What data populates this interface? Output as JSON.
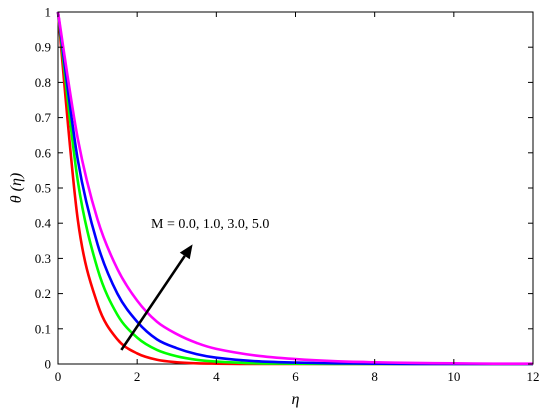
{
  "chart_data": {
    "type": "line",
    "xlabel": "η",
    "ylabel": "θ (η)",
    "xlim": [
      0,
      12
    ],
    "ylim": [
      0,
      1
    ],
    "xticks": [
      "0",
      "2",
      "4",
      "6",
      "8",
      "10",
      "12"
    ],
    "yticks": [
      "0",
      "0.1",
      "0.2",
      "0.3",
      "0.4",
      "0.5",
      "0.6",
      "0.7",
      "0.8",
      "0.9",
      "1"
    ],
    "grid": false,
    "annotation": "M  = 0.0, 1.0, 3.0, 5.0",
    "arrow": {
      "from": [
        1.6,
        0.04
      ],
      "to": [
        3.4,
        0.34
      ]
    },
    "x": [
      0,
      0.5,
      1,
      1.5,
      2,
      2.5,
      3,
      3.5,
      4,
      5,
      6,
      7,
      8,
      9,
      10,
      11,
      12
    ],
    "series": [
      {
        "color": "#ff0000",
        "values": [
          1.0,
          0.41,
          0.17,
          0.07,
          0.03,
          0.012,
          0.005,
          0.002,
          0.001,
          0.0,
          0.0,
          0.0,
          0.0,
          0.0,
          0.0,
          0.0,
          0.0
        ]
      },
      {
        "color": "#00ff00",
        "values": [
          1.0,
          0.52,
          0.27,
          0.14,
          0.075,
          0.04,
          0.022,
          0.012,
          0.007,
          0.002,
          0.001,
          0.0,
          0.0,
          0.0,
          0.0,
          0.0,
          0.0
        ]
      },
      {
        "color": "#0000ff",
        "values": [
          1.0,
          0.58,
          0.34,
          0.2,
          0.12,
          0.07,
          0.045,
          0.028,
          0.018,
          0.008,
          0.004,
          0.002,
          0.001,
          0.0,
          0.0,
          0.0,
          0.0
        ]
      },
      {
        "color": "#ff00ff",
        "values": [
          1.0,
          0.64,
          0.41,
          0.27,
          0.18,
          0.12,
          0.085,
          0.06,
          0.043,
          0.024,
          0.014,
          0.008,
          0.005,
          0.003,
          0.002,
          0.001,
          0.001
        ]
      }
    ]
  }
}
